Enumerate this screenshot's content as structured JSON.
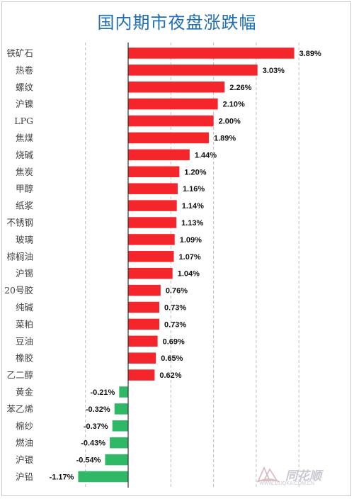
{
  "page": {
    "title": "国内期市夜盘涨跌幅",
    "watermark": {
      "brand": "同花顺",
      "url": "WWW.10JQKA.COM.CN"
    }
  },
  "colors": {
    "positive": "#f5262b",
    "negative": "#2fb866",
    "title": "#1f6fb4",
    "grid": "#bfbfbf"
  },
  "chart_data": {
    "type": "bar",
    "orientation": "horizontal",
    "title": "国内期市夜盘涨跌幅",
    "xlabel": "",
    "ylabel": "",
    "unit": "%",
    "xlim": [
      -1.5,
      4.0
    ],
    "grid": "vertical-dashed",
    "categories": [
      "铁矿石",
      "热卷",
      "螺纹",
      "沪镍",
      "LPG",
      "焦煤",
      "烧碱",
      "焦炭",
      "甲醇",
      "纸浆",
      "不锈钢",
      "玻璃",
      "棕榈油",
      "沪锡",
      "20号胶",
      "纯碱",
      "菜粕",
      "豆油",
      "橡胶",
      "乙二醇",
      "黄金",
      "苯乙烯",
      "棉纱",
      "燃油",
      "沪银",
      "沪铅"
    ],
    "values": [
      3.89,
      3.03,
      2.26,
      2.1,
      2.0,
      1.89,
      1.44,
      1.2,
      1.16,
      1.14,
      1.13,
      1.09,
      1.07,
      1.04,
      0.76,
      0.73,
      0.73,
      0.69,
      0.65,
      0.62,
      -0.21,
      -0.32,
      -0.37,
      -0.43,
      -0.54,
      -1.17
    ],
    "labels": [
      "3.89%",
      "3.03%",
      "2.26%",
      "2.10%",
      "2.00%",
      "1.89%",
      "1.44%",
      "1.20%",
      "1.16%",
      "1.14%",
      "1.13%",
      "1.09%",
      "1.07%",
      "1.04%",
      "0.76%",
      "0.73%",
      "0.73%",
      "0.69%",
      "0.65%",
      "0.62%",
      "-0.21%",
      "-0.32%",
      "-0.37%",
      "-0.43%",
      "-0.54%",
      "-1.17%"
    ]
  }
}
